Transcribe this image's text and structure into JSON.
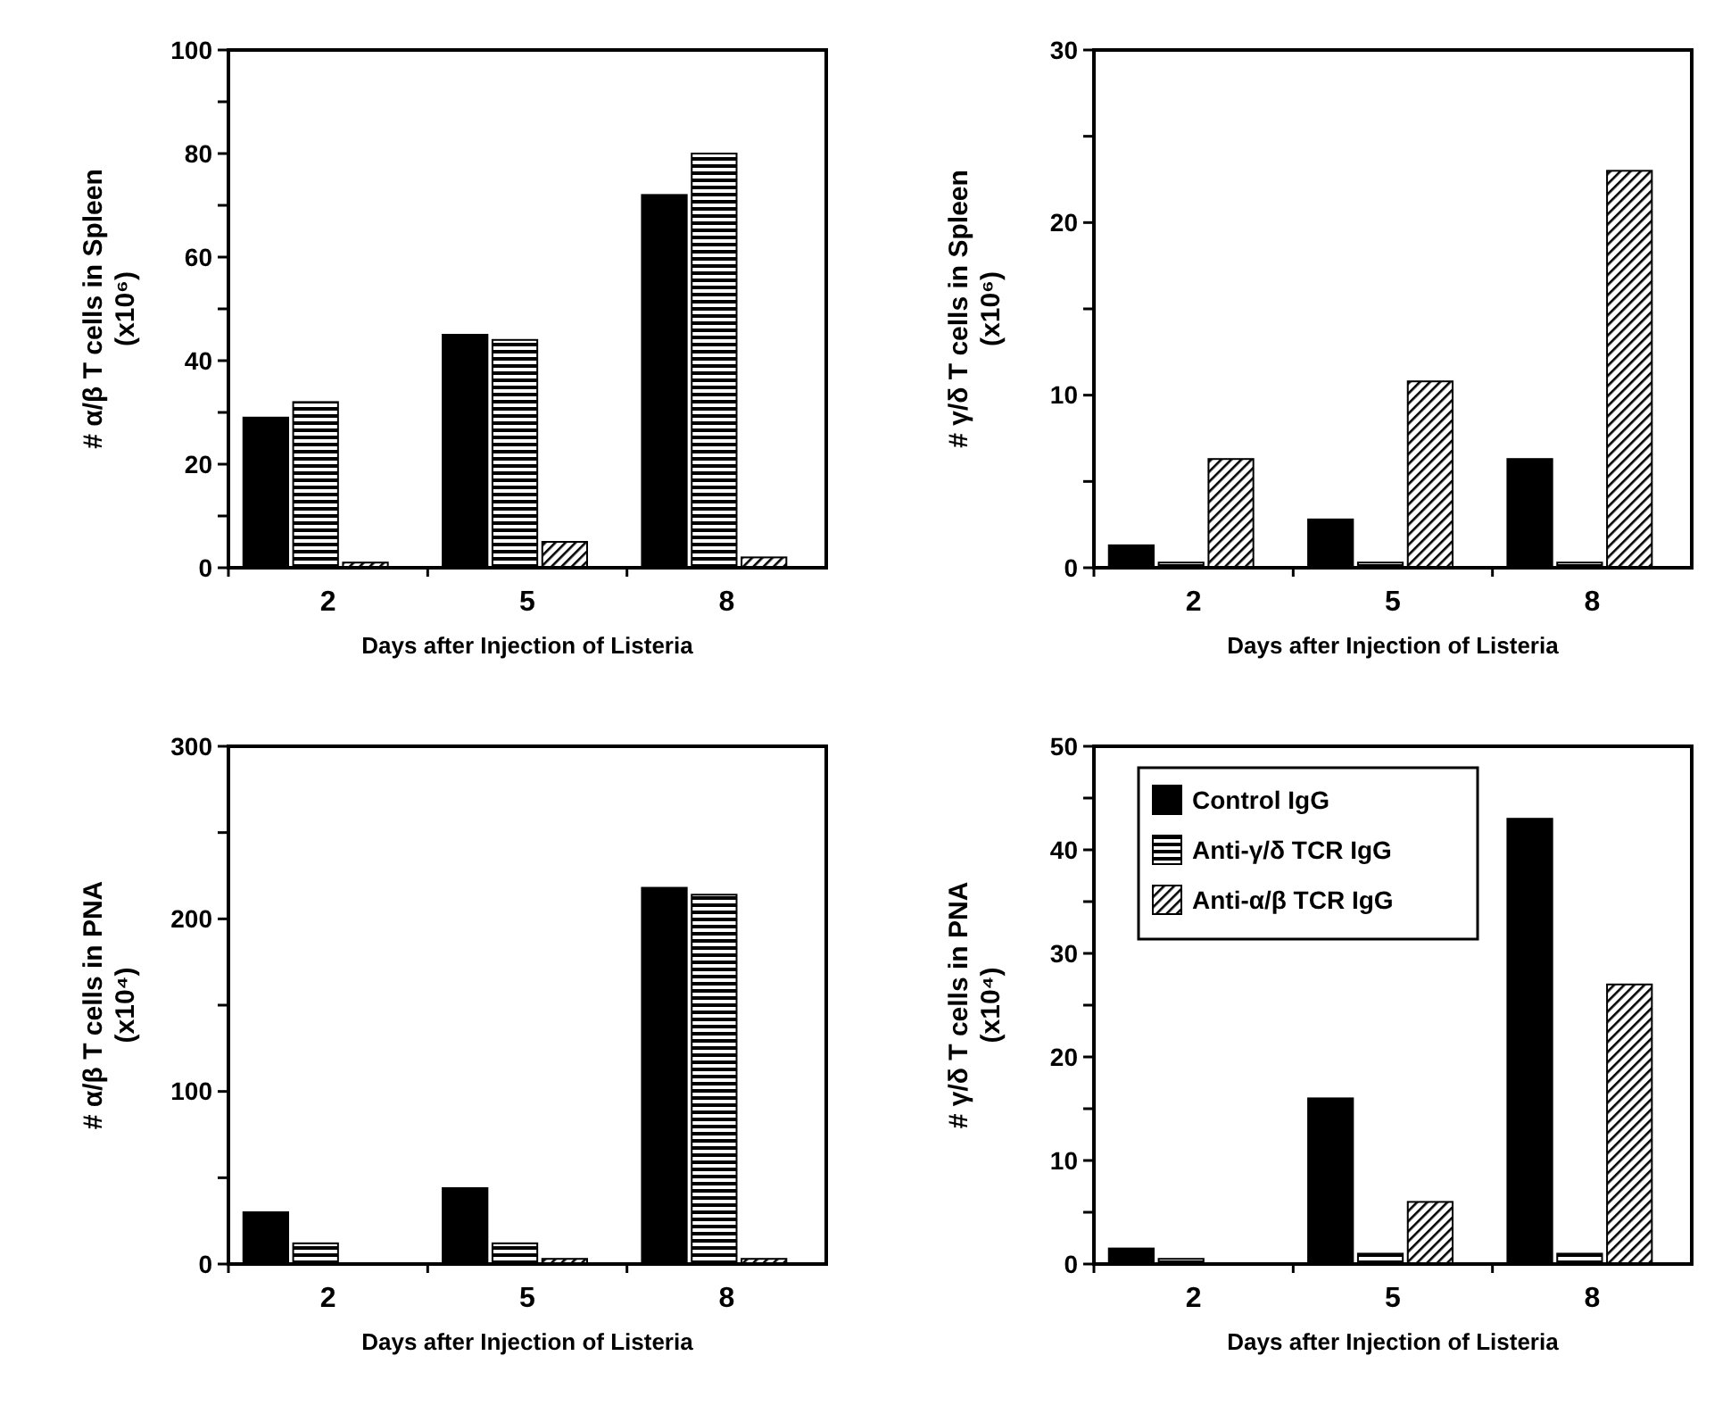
{
  "chart_data": [
    {
      "type": "bar",
      "categories": [
        "2",
        "5",
        "8"
      ],
      "xlabel": "Days after Injection of Listeria",
      "ylabel": "# α/β T cells in Spleen (x10⁶)",
      "ylim": [
        0,
        100
      ],
      "yticks": [
        0,
        {
          "value": 10,
          "label": null
        },
        20,
        {
          "value": 30,
          "label": null
        },
        40,
        {
          "value": 50,
          "label": null
        },
        60,
        {
          "value": 70,
          "label": null
        },
        80,
        {
          "value": 90,
          "label": null
        },
        100
      ],
      "series": [
        {
          "color": "#000000",
          "values": [
            29,
            45,
            72
          ]
        },
        {
          "color": "#000000",
          "values": [
            32,
            44,
            80
          ]
        },
        {
          "color": "#000000",
          "values": [
            1,
            5,
            2
          ]
        }
      ],
      "legend": false
    },
    {
      "type": "bar",
      "categories": [
        "2",
        "5",
        "8"
      ],
      "xlabel": "Days after Injection of Listeria",
      "ylabel": "# γ/δ T cells in Spleen (x10⁶)",
      "ylim": [
        0,
        30
      ],
      "yticks": [
        0,
        {
          "value": 5,
          "label": null
        },
        10,
        {
          "value": 15,
          "label": null
        },
        20,
        {
          "value": 25,
          "label": null
        },
        30
      ],
      "series": [
        {
          "color": "#000000",
          "values": [
            1.3,
            2.8,
            6.3
          ]
        },
        {
          "color": "#000000",
          "values": [
            0.3,
            0.3,
            0.3
          ]
        },
        {
          "color": "#000000",
          "values": [
            6.3,
            10.8,
            23
          ]
        }
      ],
      "legend": false
    },
    {
      "type": "bar",
      "categories": [
        "2",
        "5",
        "8"
      ],
      "xlabel": "Days after Injection of Listeria",
      "ylabel": "# α/β T cells in PNA (x10⁴)",
      "ylim": [
        0,
        300
      ],
      "yticks": [
        0,
        {
          "value": 50,
          "label": null
        },
        100,
        {
          "value": 150,
          "label": null
        },
        200,
        {
          "value": 250,
          "label": null
        },
        300
      ],
      "series": [
        {
          "color": "#000000",
          "values": [
            30,
            44,
            218
          ]
        },
        {
          "color": "#000000",
          "values": [
            12,
            12,
            214
          ]
        },
        {
          "color": "#000000",
          "values": [
            0,
            3,
            3
          ]
        }
      ],
      "legend": false
    },
    {
      "type": "bar",
      "categories": [
        "2",
        "5",
        "8"
      ],
      "xlabel": "Days after Injection of Listeria",
      "ylabel": "# γ/δ T cells in PNA (x10⁴)",
      "ylim": [
        0,
        50
      ],
      "yticks": [
        0,
        {
          "value": 5,
          "label": null
        },
        10,
        {
          "value": 15,
          "label": null
        },
        20,
        {
          "value": 25,
          "label": null
        },
        30,
        {
          "value": 35,
          "label": null
        },
        40,
        {
          "value": 45,
          "label": null
        },
        50
      ],
      "series": [
        {
          "name": "Control IgG",
          "color": "#000000",
          "values": [
            1.5,
            16,
            43
          ]
        },
        {
          "name": "Anti-γ/δ TCR IgG",
          "color": "#000000",
          "values": [
            0.5,
            1,
            1
          ]
        },
        {
          "name": "Anti-α/β TCR IgG",
          "color": "#000000",
          "values": [
            0,
            6,
            27
          ]
        }
      ],
      "legend": "top left"
    }
  ]
}
